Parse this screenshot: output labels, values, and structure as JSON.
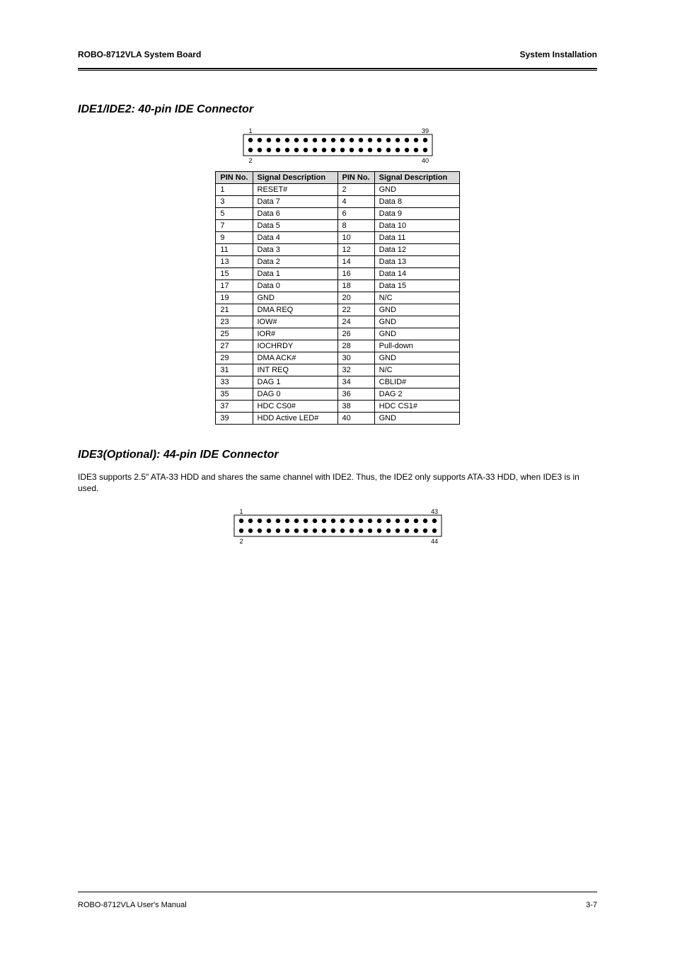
{
  "header": {
    "book_title": "ROBO-8712VLA System Board",
    "chapter": "System Installation"
  },
  "ide": {
    "title": "IDE1/IDE2: 40-pin IDE Connector",
    "figure_label": "1  39",
    "figure_label2": "2  40",
    "column_headers": [
      "PIN No.",
      "Signal Description",
      "PIN No.",
      "Signal Description"
    ],
    "rows": [
      [
        "1",
        "RESET#",
        "2",
        "GND"
      ],
      [
        "3",
        "Data 7",
        "4",
        "Data 8"
      ],
      [
        "5",
        "Data 6",
        "6",
        "Data 9"
      ],
      [
        "7",
        "Data 5",
        "8",
        "Data 10"
      ],
      [
        "9",
        "Data 4",
        "10",
        "Data 11"
      ],
      [
        "11",
        "Data 3",
        "12",
        "Data 12"
      ],
      [
        "13",
        "Data 2",
        "14",
        "Data 13"
      ],
      [
        "15",
        "Data 1",
        "16",
        "Data 14"
      ],
      [
        "17",
        "Data 0",
        "18",
        "Data 15"
      ],
      [
        "19",
        "GND",
        "20",
        "N/C"
      ],
      [
        "21",
        "DMA REQ",
        "22",
        "GND"
      ],
      [
        "23",
        "IOW#",
        "24",
        "GND"
      ],
      [
        "25",
        "IOR#",
        "26",
        "GND"
      ],
      [
        "27",
        "IOCHRDY",
        "28",
        "Pull-down"
      ],
      [
        "29",
        "DMA ACK#",
        "30",
        "GND"
      ],
      [
        "31",
        "INT REQ",
        "32",
        "N/C"
      ],
      [
        "33",
        "DAG 1",
        "34",
        "CBLID#"
      ],
      [
        "35",
        "DAG 0",
        "36",
        "DAG 2"
      ],
      [
        "37",
        "HDC CS0#",
        "38",
        "HDC CS1#"
      ],
      [
        "39",
        "HDD Active LED#",
        "40",
        "GND"
      ]
    ]
  },
  "ide44": {
    "title": "IDE3(Optional): 44-pin IDE Connector",
    "desc": "IDE3 supports 2.5\" ATA-33 HDD and shares the same channel with IDE2. Thus, the IDE2 only supports ATA-33 HDD, when IDE3 is in used.",
    "figure_label": "1  43",
    "figure_label2": "2  44"
  },
  "footer": {
    "doc_id": "ROBO-8712VLA User's Manual",
    "page": "3-7"
  },
  "connector40": {
    "pins_per_row": 20,
    "dot_r": 3.2,
    "dot_gap": 13,
    "dot_color": "#000000",
    "stroke": "#000000"
  },
  "connector44": {
    "pins_per_row": 22,
    "dot_r": 3.2,
    "dot_gap": 13,
    "dot_color": "#000000",
    "stroke": "#000000"
  }
}
